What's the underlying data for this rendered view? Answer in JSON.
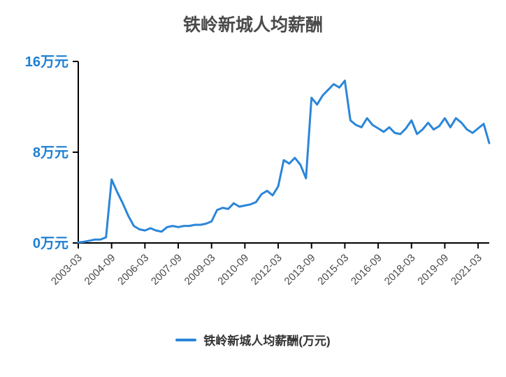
{
  "title": "铁岭新城人均薪酬",
  "legend": {
    "label": "铁岭新城人均薪酬(万元)"
  },
  "colors": {
    "line": "#2b86d9",
    "axis": "#000000",
    "y_label": "#1e80d4",
    "x_label": "#4a4a4a",
    "title": "#4a4a4a",
    "legend_text": "#333333"
  },
  "chart_data": {
    "type": "line",
    "title": "铁岭新城人均薪酬",
    "xlabel": "",
    "ylabel": "万元",
    "ylim": [
      0,
      16
    ],
    "grid": false,
    "legend_position": "bottom",
    "legend_entries": [
      "铁岭新城人均薪酬(万元)"
    ],
    "y_ticks": [
      {
        "value": 0,
        "label": "0万元"
      },
      {
        "value": 8,
        "label": "8万元"
      },
      {
        "value": 16,
        "label": "16万元"
      }
    ],
    "x_tick_every": 6,
    "x": [
      "2003-03",
      "2003-06",
      "2003-09",
      "2003-12",
      "2004-03",
      "2004-06",
      "2004-09",
      "2004-12",
      "2005-03",
      "2005-06",
      "2005-09",
      "2005-12",
      "2006-03",
      "2006-06",
      "2006-09",
      "2006-12",
      "2007-03",
      "2007-06",
      "2007-09",
      "2007-12",
      "2008-03",
      "2008-06",
      "2008-09",
      "2008-12",
      "2009-03",
      "2009-06",
      "2009-09",
      "2009-12",
      "2010-03",
      "2010-06",
      "2010-09",
      "2010-12",
      "2011-03",
      "2011-06",
      "2011-09",
      "2011-12",
      "2012-03",
      "2012-06",
      "2012-09",
      "2012-12",
      "2013-03",
      "2013-06",
      "2013-09",
      "2013-12",
      "2014-03",
      "2014-06",
      "2014-09",
      "2014-12",
      "2015-03",
      "2015-06",
      "2015-09",
      "2015-12",
      "2016-03",
      "2016-06",
      "2016-09",
      "2016-12",
      "2017-03",
      "2017-06",
      "2017-09",
      "2017-12",
      "2018-03",
      "2018-06",
      "2018-09",
      "2018-12",
      "2019-03",
      "2019-06",
      "2019-09",
      "2019-12",
      "2020-03",
      "2020-06",
      "2020-09",
      "2020-12",
      "2021-03",
      "2021-06",
      "2021-09"
    ],
    "values": [
      0.05,
      0.1,
      0.2,
      0.3,
      0.3,
      0.5,
      5.6,
      4.5,
      3.5,
      2.4,
      1.5,
      1.2,
      1.1,
      1.3,
      1.1,
      1.0,
      1.4,
      1.5,
      1.4,
      1.5,
      1.5,
      1.6,
      1.6,
      1.7,
      1.9,
      2.9,
      3.1,
      3.0,
      3.5,
      3.2,
      3.3,
      3.4,
      3.6,
      4.3,
      4.6,
      4.2,
      5.0,
      7.3,
      7.0,
      7.5,
      6.9,
      5.7,
      12.8,
      12.2,
      13.0,
      13.5,
      14.0,
      13.7,
      14.3,
      10.8,
      10.4,
      10.2,
      11.0,
      10.4,
      10.1,
      9.8,
      10.2,
      9.7,
      9.6,
      10.1,
      10.8,
      9.6,
      10.0,
      10.6,
      10.0,
      10.3,
      11.0,
      10.2,
      11.0,
      10.6,
      10.0,
      9.7,
      10.1,
      10.5,
      8.8
    ]
  }
}
